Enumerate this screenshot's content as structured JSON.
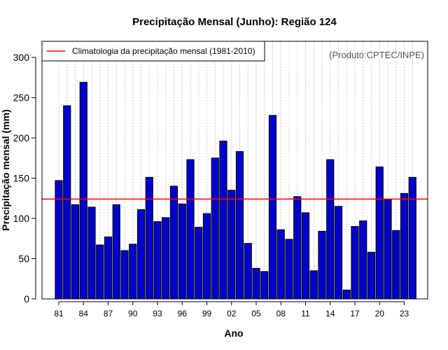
{
  "chart_data": {
    "type": "bar",
    "title": "Precipitação Mensal (Junho): Região 124",
    "xlabel": "Ano",
    "ylabel": "Precipitação mensal (mm)",
    "ylim": [
      0,
      320
    ],
    "yticks": [
      0,
      50,
      100,
      150,
      200,
      250,
      300
    ],
    "years": [
      1981,
      1982,
      1983,
      1984,
      1985,
      1986,
      1987,
      1988,
      1989,
      1990,
      1991,
      1992,
      1993,
      1994,
      1995,
      1996,
      1997,
      1998,
      1999,
      2000,
      2001,
      2002,
      2003,
      2004,
      2005,
      2006,
      2007,
      2008,
      2009,
      2010,
      2011,
      2012,
      2013,
      2014,
      2015,
      2016,
      2017,
      2018,
      2019,
      2020,
      2021,
      2022,
      2023,
      2024
    ],
    "tick_labels": [
      {
        "index": 0,
        "label": "81"
      },
      {
        "index": 3,
        "label": "84"
      },
      {
        "index": 6,
        "label": "87"
      },
      {
        "index": 9,
        "label": "90"
      },
      {
        "index": 12,
        "label": "93"
      },
      {
        "index": 15,
        "label": "96"
      },
      {
        "index": 18,
        "label": "99"
      },
      {
        "index": 21,
        "label": "02"
      },
      {
        "index": 24,
        "label": "05"
      },
      {
        "index": 27,
        "label": "08"
      },
      {
        "index": 30,
        "label": "11"
      },
      {
        "index": 33,
        "label": "14"
      },
      {
        "index": 36,
        "label": "17"
      },
      {
        "index": 39,
        "label": "20"
      },
      {
        "index": 42,
        "label": "23"
      }
    ],
    "values": [
      147,
      240,
      117,
      269,
      114,
      67,
      77,
      117,
      60,
      68,
      111,
      151,
      96,
      101,
      140,
      118,
      173,
      89,
      106,
      175,
      196,
      135,
      183,
      69,
      38,
      34,
      228,
      86,
      74,
      127,
      107,
      35,
      84,
      173,
      115,
      11,
      90,
      97,
      58,
      164,
      123,
      85,
      131,
      151
    ],
    "bar_color": "#0000CD",
    "climatology": {
      "label": "Climatologia da precipitação mensal (1981-2010)",
      "value": 124,
      "color": "#FF0000"
    },
    "legend_position": "top-left",
    "credit": "(Produto:CPTEC/INPE)",
    "grid": "vertical dotted"
  }
}
